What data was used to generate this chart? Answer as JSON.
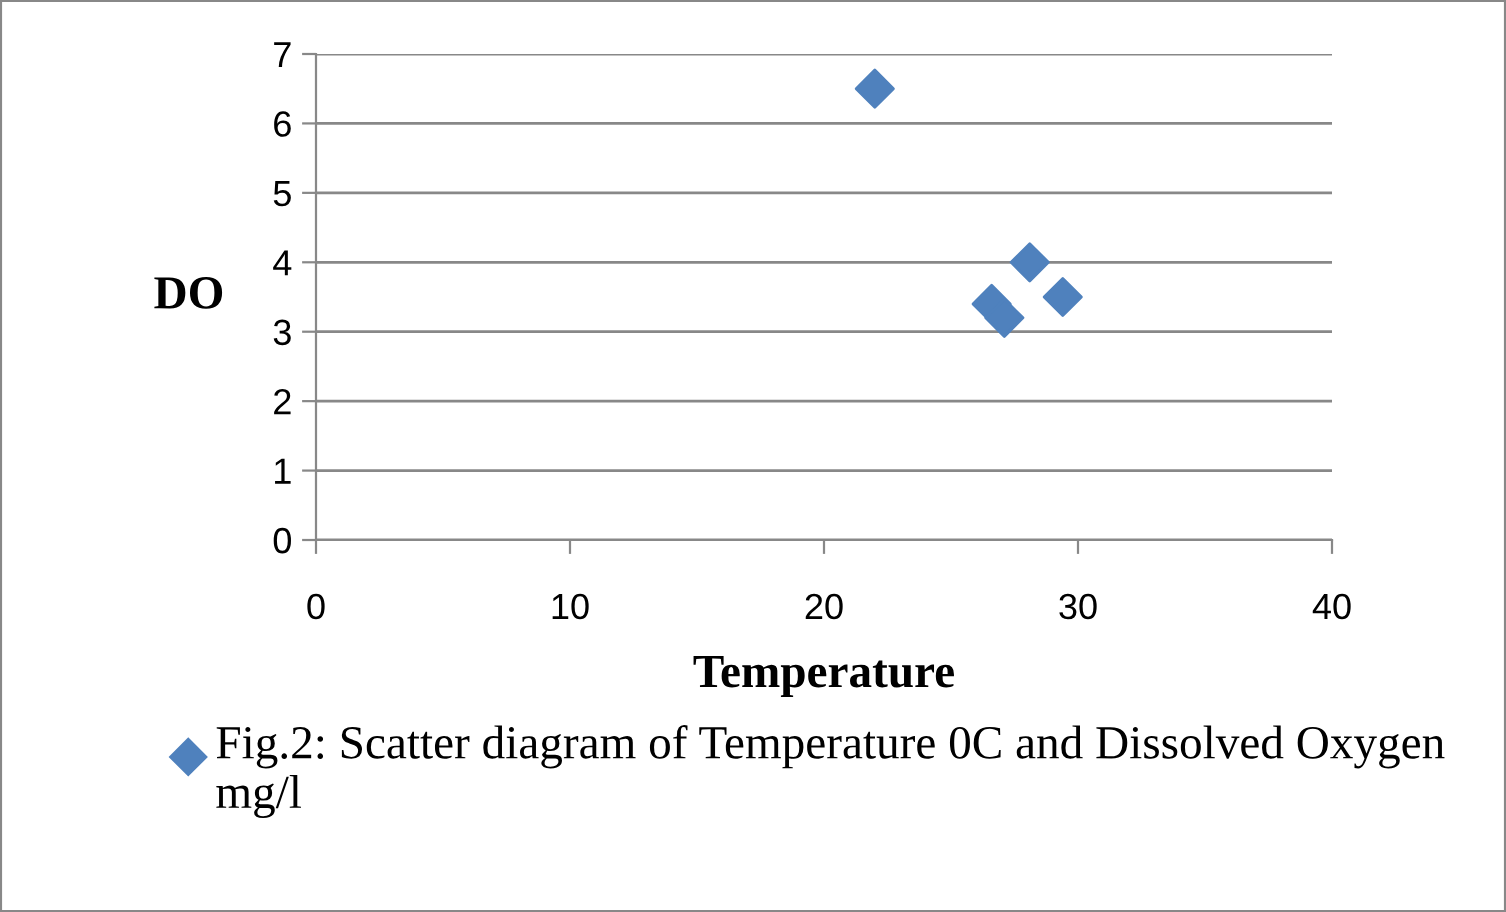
{
  "chart_data": {
    "type": "scatter",
    "xlabel": "Temperature",
    "ylabel": "DO",
    "x": [
      22,
      26.6,
      27.1,
      28.1,
      29.4
    ],
    "series": [
      {
        "name": "Fig.2: Scatter diagram of Temperature 0C and Dissolved Oxygen mg/l",
        "color": "#4f81bd",
        "values": [
          6.5,
          3.4,
          3.2,
          4.0,
          3.5
        ]
      }
    ],
    "xlim": [
      0,
      40
    ],
    "xticks": [
      0,
      10,
      20,
      30,
      40
    ],
    "ylim": [
      0,
      7
    ],
    "yticks": [
      0,
      1,
      2,
      3,
      4,
      5,
      6,
      7
    ],
    "grid": "y",
    "legend": "bottom",
    "marker": "diamond"
  }
}
